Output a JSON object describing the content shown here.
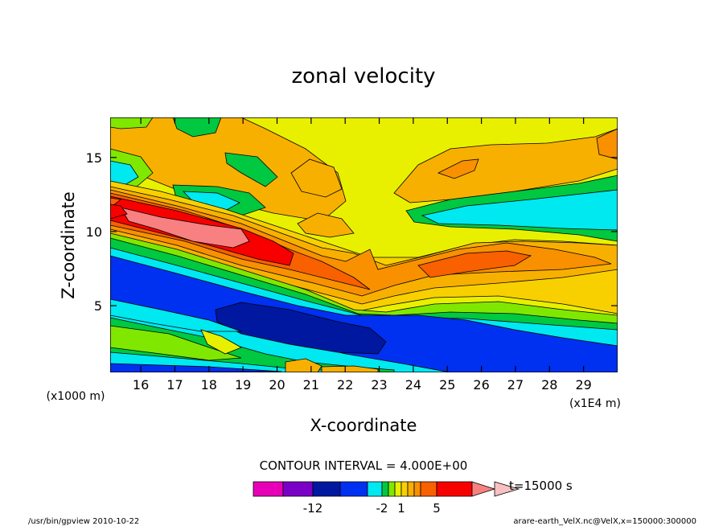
{
  "chart_data": {
    "type": "heatmap",
    "title": "zonal velocity",
    "xlabel": "X-coordinate",
    "ylabel": "Z-coordinate",
    "x_units": "(x1E4 m)",
    "y_units": "(x1000 m)",
    "xlim": [
      15.1,
      30.0
    ],
    "ylim": [
      0.5,
      17.7
    ],
    "x_ticks": [
      16,
      17,
      18,
      19,
      20,
      21,
      22,
      23,
      24,
      25,
      26,
      27,
      28,
      29
    ],
    "y_ticks": [
      5,
      10,
      15
    ],
    "contour_interval": "CONTOUR INTERVAL = 4.000E+00",
    "time_label": "t=15000 s",
    "colorbar": {
      "levels": [
        -16,
        -12,
        -8,
        -4,
        -2,
        -1,
        0,
        1,
        2,
        3,
        4,
        5,
        8,
        12
      ],
      "tick_labels": [
        {
          "level": -12,
          "text": "-12"
        },
        {
          "level": -2,
          "text": "-2"
        },
        {
          "level": 1,
          "text": "1"
        },
        {
          "level": 5,
          "text": "5"
        }
      ],
      "colors": [
        "#e800b8",
        "#7a00c8",
        "#0018a0",
        "#0030f0",
        "#00e8f0",
        "#00c840",
        "#80e800",
        "#e8f000",
        "#f8d000",
        "#f8b000",
        "#f89000",
        "#f86000",
        "#f80000",
        "#f88080",
        "#f8c0c0"
      ]
    },
    "footer_left": "/usr/bin/gpview  2010-10-22",
    "footer_right": "arare-earth_VelX.nc@VelX,x=150000:300000"
  }
}
